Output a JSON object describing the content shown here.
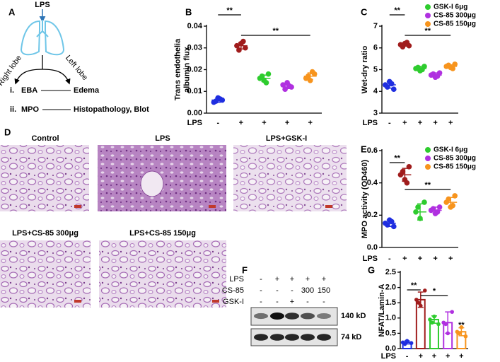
{
  "diagram": {
    "panel": "A",
    "input": "LPS",
    "left_label": "Right lobe",
    "right_label": "Left lobe",
    "rows": [
      {
        "index": "i.",
        "from": "EBA",
        "to": "Edema"
      },
      {
        "index": "ii.",
        "from": "MPO",
        "to": "Histopathology, Blot"
      }
    ]
  },
  "histology": {
    "panel": "D",
    "images": [
      "Control",
      "LPS",
      "LPS+GSK-I",
      "LPS+CS-85 300μg",
      "LPS+CS-85 150μg"
    ]
  },
  "blot": {
    "panel": "F",
    "rows": [
      {
        "name": "LPS",
        "lanes": [
          "-",
          "+",
          "+",
          "+",
          "+"
        ]
      },
      {
        "name": "CS-85",
        "lanes": [
          "-",
          "-",
          "-",
          "300",
          "150"
        ]
      },
      {
        "name": "GSK-I",
        "lanes": [
          "-",
          "-",
          "+",
          "-",
          "-"
        ]
      }
    ],
    "bands": [
      "140 kD",
      "74 kD"
    ]
  },
  "chart_data": [
    {
      "type": "dot",
      "panel": "B",
      "y_label": [
        "Trans endothelia",
        "albumin flux"
      ],
      "x_label": "LPS",
      "categories": [
        "-",
        "+",
        "+",
        "+",
        "+"
      ],
      "ylim": [
        0,
        0.04
      ],
      "yticks": [
        {
          "value": 0,
          "label": "0.00"
        },
        0.01,
        0.02,
        0.03,
        0.04
      ],
      "groups": [
        {
          "color": "#1f2ee0",
          "values": [
            0.005,
            0.006,
            0.007,
            0.0055,
            0.0065
          ],
          "mean": 0.006,
          "sd": 0.001
        },
        {
          "color": "#a01c1c",
          "values": [
            0.031,
            0.03,
            0.032,
            0.029,
            0.033
          ],
          "mean": 0.031,
          "sd": 0.0015
        },
        {
          "color": "#2ecc2e",
          "values": [
            0.016,
            0.018,
            0.015,
            0.017,
            0.014
          ],
          "mean": 0.016,
          "sd": 0.0015
        },
        {
          "color": "#b030e0",
          "values": [
            0.013,
            0.012,
            0.014,
            0.011,
            0.0125
          ],
          "mean": 0.0125,
          "sd": 0.0012
        },
        {
          "color": "#f7941d",
          "values": [
            0.016,
            0.018,
            0.015,
            0.017,
            0.019
          ],
          "mean": 0.017,
          "sd": 0.0015
        }
      ],
      "annotations": [
        "**",
        "**"
      ]
    },
    {
      "type": "dot",
      "panel": "C",
      "y_label": [
        "Wet-dry ratio"
      ],
      "x_label": "LPS",
      "categories": [
        "-",
        "+",
        "+",
        "+",
        "+"
      ],
      "ylim": [
        3,
        7
      ],
      "yticks": [
        3,
        4,
        5,
        6,
        7
      ],
      "legend": [
        {
          "name": "GSK-I 6μg",
          "color": "#2ecc2e"
        },
        {
          "name": "CS-85 300μg",
          "color": "#b030e0"
        },
        {
          "name": "CS-85 150μg",
          "color": "#f7941d"
        }
      ],
      "groups": [
        {
          "color": "#1f2ee0",
          "values": [
            4.3,
            4.1,
            4.45,
            4.2,
            4.35
          ],
          "mean": 4.3,
          "sd": 0.15
        },
        {
          "color": "#a01c1c",
          "values": [
            6.15,
            6.1,
            6.2,
            6.05,
            6.25
          ],
          "mean": 6.15,
          "sd": 0.07
        },
        {
          "color": "#2ecc2e",
          "values": [
            5.05,
            5.15,
            4.95,
            5.1,
            5.0
          ],
          "mean": 5.05,
          "sd": 0.1
        },
        {
          "color": "#b030e0",
          "values": [
            4.75,
            4.85,
            4.65,
            4.8,
            4.7
          ],
          "mean": 4.75,
          "sd": 0.1
        },
        {
          "color": "#f7941d",
          "values": [
            5.15,
            5.25,
            5.1,
            5.2,
            5.05
          ],
          "mean": 5.15,
          "sd": 0.07
        }
      ],
      "annotations": [
        "**",
        "**"
      ]
    },
    {
      "type": "dot",
      "panel": "E",
      "y_label": [
        "MPO activity (OD460)"
      ],
      "x_label": "LPS",
      "categories": [
        "-",
        "+",
        "+",
        "+",
        "+"
      ],
      "ylim": [
        0,
        0.6
      ],
      "yticks": [
        {
          "value": 0,
          "label": "0.0"
        },
        0.2,
        0.4,
        0.6
      ],
      "legend": [
        {
          "name": "GSK-I 6μg",
          "color": "#2ecc2e"
        },
        {
          "name": "CS-85 300μg",
          "color": "#b030e0"
        },
        {
          "name": "CS-85 150μg",
          "color": "#f7941d"
        }
      ],
      "groups": [
        {
          "color": "#1f2ee0",
          "values": [
            0.15,
            0.13,
            0.17,
            0.14,
            0.16
          ],
          "mean": 0.15,
          "sd": 0.02
        },
        {
          "color": "#a01c1c",
          "values": [
            0.45,
            0.5,
            0.42,
            0.47,
            0.4
          ],
          "mean": 0.45,
          "sd": 0.04
        },
        {
          "color": "#2ecc2e",
          "values": [
            0.22,
            0.28,
            0.18,
            0.25
          ],
          "mean": 0.22,
          "sd": 0.05
        },
        {
          "color": "#b030e0",
          "values": [
            0.23,
            0.25,
            0.21,
            0.24,
            0.22
          ],
          "mean": 0.23,
          "sd": 0.02
        },
        {
          "color": "#f7941d",
          "values": [
            0.28,
            0.32,
            0.25,
            0.3,
            0.26
          ],
          "mean": 0.28,
          "sd": 0.03
        }
      ],
      "annotations": [
        "**",
        "**"
      ]
    },
    {
      "type": "bar",
      "panel": "G",
      "y_label": [
        "NFAT/Lamin-A"
      ],
      "x_label": "LPS",
      "categories": [
        "-",
        "+",
        "+",
        "+",
        "+"
      ],
      "ylim": [
        0,
        2.5
      ],
      "yticks": [
        {
          "value": 0,
          "label": "0.0"
        },
        0.5,
        {
          "value": 1,
          "label": "1.0"
        },
        1.5,
        {
          "value": 2,
          "label": "2.0"
        },
        2.5
      ],
      "groups": [
        {
          "color": "#1f2ee0",
          "values": [
            0.2,
            0.18,
            0.25,
            0.15
          ],
          "mean": 0.2,
          "sd": 0.05
        },
        {
          "color": "#a01c1c",
          "values": [
            1.6,
            1.9,
            1.4,
            1.5
          ],
          "mean": 1.6,
          "sd": 0.25
        },
        {
          "color": "#2ecc2e",
          "values": [
            0.95,
            0.8,
            1.05,
            0.85
          ],
          "mean": 0.95,
          "sd": 0.12
        },
        {
          "color": "#b030e0",
          "values": [
            0.85,
            1.2,
            0.5,
            0.8
          ],
          "mean": 0.85,
          "sd": 0.35
        },
        {
          "color": "#f7941d",
          "values": [
            0.55,
            0.4,
            0.7,
            0.5
          ],
          "mean": 0.55,
          "sd": 0.13
        }
      ],
      "annotations": [
        "**",
        "*",
        "**"
      ]
    }
  ]
}
